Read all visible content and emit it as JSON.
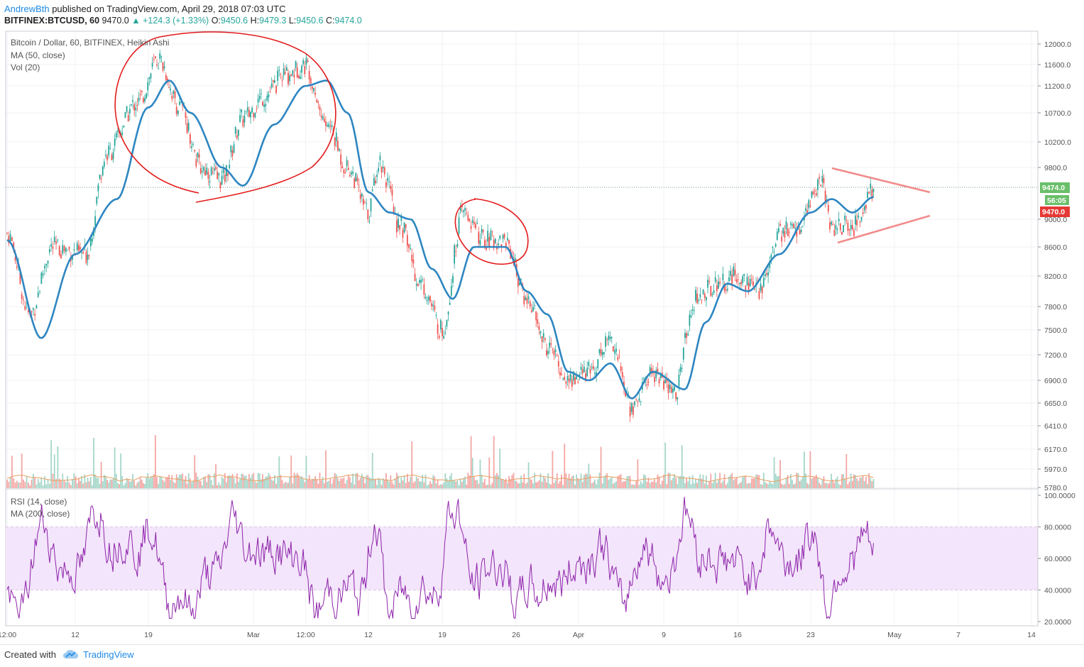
{
  "header": {
    "author": "AndrewBth",
    "published_text": " published on TradingView.com, April 29, 2018 07:03 UTC",
    "symbol": "BITFINEX:BTCUSD, 60",
    "ohlc": "9470.0",
    "change": "▲ +124.3 (+1.33%)",
    "o_label": "O:",
    "o_value": "9450.6",
    "h_label": "H:",
    "h_value": "9479.3",
    "l_label": "L:",
    "l_value": "9450.6",
    "c_label": "C:",
    "c_value": "9474.0"
  },
  "legend": {
    "main_title": "Bitcoin / Dollar, 60, BITFINEX, Heikin Ashi",
    "ma_label": "MA (50, close)",
    "vol_label": "Vol (20)",
    "rsi_label": "RSI (14, close)",
    "rsi_ma_label": "MA (200, close)"
  },
  "footer": {
    "created_with": "Created with",
    "brand": "TradingView"
  },
  "colors": {
    "ma_line": "#2e86c1",
    "annotation_red": "#e31b1b",
    "triangle_pink": "#f28b8b",
    "rsi_line": "#8e24aa",
    "rsi_band": "#f3e5fb",
    "up_candle": "#26a69a",
    "down_candle": "#ef5350",
    "price_tag_green": "#6abf69",
    "price_tag_red": "#e53935"
  },
  "chart_data": [
    {
      "type": "candlestick",
      "title": "Bitcoin / Dollar, 60, BITFINEX, Heikin Ashi",
      "price_scale_ticks": [
        12000.0,
        11600.0,
        11200.0,
        10700.0,
        10200.0,
        9800.0,
        9474.0,
        9000.0,
        8600.0,
        8200.0,
        7800.0,
        7500.0,
        7200.0,
        6900.0,
        6650.0,
        6410.0,
        6170.0,
        5970.0,
        5780.0
      ],
      "price_tick_labels": [
        "12000.0",
        "11600.0",
        "11200.0",
        "10700.0",
        "10200.0",
        "9800.0",
        "9000.0",
        "8600.0",
        "8200.0",
        "7800.0",
        "7500.0",
        "7200.0",
        "6900.0",
        "6650.0",
        "6410.0",
        "6170.0",
        "5970.0",
        "5780.0"
      ],
      "last_price_tag": "9474.0",
      "countdown_tag": "56:05",
      "prev_close_tag": "9470.0",
      "time_tick_labels": [
        "12:00",
        "12",
        "19",
        "Mar",
        "12:00",
        "12",
        "19",
        "26",
        "Apr",
        "9",
        "16",
        "23",
        "May",
        "7",
        "14"
      ],
      "close_path": [
        {
          "x": "Feb 6",
          "y": 8800
        },
        {
          "x": "Feb 8",
          "y": 7700
        },
        {
          "x": "Feb 10",
          "y": 8600
        },
        {
          "x": "Feb 13",
          "y": 8500
        },
        {
          "x": "Feb 15",
          "y": 10000
        },
        {
          "x": "Feb 18",
          "y": 10900
        },
        {
          "x": "Feb 20",
          "y": 11700
        },
        {
          "x": "Feb 22",
          "y": 10800
        },
        {
          "x": "Feb 24",
          "y": 9800
        },
        {
          "x": "Feb 26",
          "y": 9600
        },
        {
          "x": "Feb 28",
          "y": 10600
        },
        {
          "x": "Mar 2",
          "y": 11000
        },
        {
          "x": "Mar 4",
          "y": 11400
        },
        {
          "x": "Mar 6",
          "y": 11600
        },
        {
          "x": "Mar 8",
          "y": 10500
        },
        {
          "x": "Mar 10",
          "y": 9800
        },
        {
          "x": "Mar 12",
          "y": 9100
        },
        {
          "x": "Mar 13",
          "y": 9900
        },
        {
          "x": "Mar 15",
          "y": 8900
        },
        {
          "x": "Mar 17",
          "y": 8100
        },
        {
          "x": "Mar 19",
          "y": 7500
        },
        {
          "x": "Mar 21",
          "y": 9100
        },
        {
          "x": "Mar 23",
          "y": 8700
        },
        {
          "x": "Mar 25",
          "y": 8700
        },
        {
          "x": "Mar 27",
          "y": 7900
        },
        {
          "x": "Mar 29",
          "y": 7300
        },
        {
          "x": "Mar 31",
          "y": 6900
        },
        {
          "x": "Apr 2",
          "y": 7000
        },
        {
          "x": "Apr 4",
          "y": 7400
        },
        {
          "x": "Apr 6",
          "y": 6600
        },
        {
          "x": "Apr 8",
          "y": 7000
        },
        {
          "x": "Apr 10",
          "y": 6750
        },
        {
          "x": "Apr 12",
          "y": 7900
        },
        {
          "x": "Apr 14",
          "y": 8100
        },
        {
          "x": "Apr 16",
          "y": 8200
        },
        {
          "x": "Apr 18",
          "y": 8000
        },
        {
          "x": "Apr 20",
          "y": 8800
        },
        {
          "x": "Apr 22",
          "y": 8900
        },
        {
          "x": "Apr 24",
          "y": 9600
        },
        {
          "x": "Apr 25",
          "y": 8900
        },
        {
          "x": "Apr 27",
          "y": 8900
        },
        {
          "x": "Apr 29",
          "y": 9474
        }
      ],
      "ma50_path": [
        {
          "x": "Feb 6",
          "y": 8700
        },
        {
          "x": "Feb 9",
          "y": 7400
        },
        {
          "x": "Feb 12",
          "y": 8500
        },
        {
          "x": "Feb 16",
          "y": 9300
        },
        {
          "x": "Feb 19",
          "y": 10800
        },
        {
          "x": "Feb 21",
          "y": 11300
        },
        {
          "x": "Feb 23",
          "y": 10700
        },
        {
          "x": "Feb 26",
          "y": 9800
        },
        {
          "x": "Feb 28",
          "y": 9500
        },
        {
          "x": "Mar 3",
          "y": 10500
        },
        {
          "x": "Mar 6",
          "y": 11200
        },
        {
          "x": "Mar 8",
          "y": 11300
        },
        {
          "x": "Mar 10",
          "y": 10700
        },
        {
          "x": "Mar 12",
          "y": 9400
        },
        {
          "x": "Mar 14",
          "y": 9100
        },
        {
          "x": "Mar 16",
          "y": 9000
        },
        {
          "x": "Mar 18",
          "y": 8300
        },
        {
          "x": "Mar 20",
          "y": 7900
        },
        {
          "x": "Mar 22",
          "y": 8600
        },
        {
          "x": "Mar 25",
          "y": 8600
        },
        {
          "x": "Mar 27",
          "y": 8000
        },
        {
          "x": "Mar 29",
          "y": 7700
        },
        {
          "x": "Mar 31",
          "y": 7000
        },
        {
          "x": "Apr 2",
          "y": 6900
        },
        {
          "x": "Apr 4",
          "y": 7100
        },
        {
          "x": "Apr 6",
          "y": 6700
        },
        {
          "x": "Apr 8",
          "y": 7000
        },
        {
          "x": "Apr 11",
          "y": 6800
        },
        {
          "x": "Apr 13",
          "y": 7600
        },
        {
          "x": "Apr 15",
          "y": 8100
        },
        {
          "x": "Apr 17",
          "y": 8000
        },
        {
          "x": "Apr 20",
          "y": 8500
        },
        {
          "x": "Apr 23",
          "y": 9100
        },
        {
          "x": "Apr 25",
          "y": 9300
        },
        {
          "x": "Apr 27",
          "y": 9100
        },
        {
          "x": "Apr 29",
          "y": 9330
        }
      ]
    },
    {
      "type": "line",
      "title": "RSI (14, close)",
      "ylim": [
        20,
        100
      ],
      "tick_labels": [
        "100.0000",
        "80.0000",
        "60.0000",
        "40.0000",
        "20.0000"
      ],
      "band": [
        40,
        80
      ],
      "ma_label": "MA (200, close)"
    }
  ]
}
